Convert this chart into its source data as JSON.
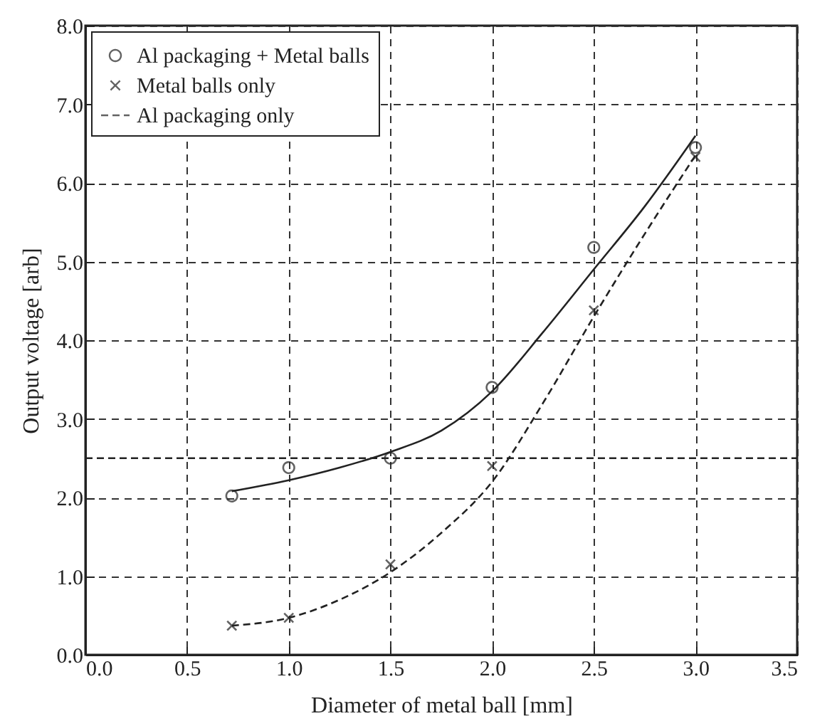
{
  "chart_data": {
    "type": "scatter",
    "xlabel": "Diameter of metal ball [mm]",
    "ylabel": "Output voltage [arb]",
    "xlim": [
      0,
      3.5
    ],
    "xticks": [
      {
        "value": 0,
        "label": "0.0"
      },
      {
        "value": 0.5,
        "label": "0.5"
      },
      {
        "value": 1,
        "label": "1.0"
      },
      {
        "value": 1.5,
        "label": "1.5"
      },
      {
        "value": 2,
        "label": "2.0"
      },
      {
        "value": 2.5,
        "label": "2.5"
      },
      {
        "value": 3,
        "label": "3.0"
      },
      {
        "value": 3.5,
        "label": "3.5"
      }
    ],
    "ylim": [
      0,
      8
    ],
    "yticks": [
      {
        "value": 0,
        "label": "0.0"
      },
      {
        "value": 1,
        "label": "1.0"
      },
      {
        "value": 2,
        "label": "2.0"
      },
      {
        "value": 3,
        "label": "3.0"
      },
      {
        "value": 4,
        "label": "4.0"
      },
      {
        "value": 5,
        "label": "5.0"
      },
      {
        "value": 6,
        "label": "6.0"
      },
      {
        "value": 7,
        "label": "7.0"
      },
      {
        "value": 8,
        "label": "8.0"
      }
    ],
    "grid": true,
    "legend": "top left",
    "series": [
      {
        "name": "Al packaging + Metal balls",
        "marker": "circle",
        "color": "#222222",
        "x": [
          0.72,
          1.0,
          1.5,
          2.0,
          2.5,
          3.0
        ],
        "values": [
          2.02,
          2.38,
          2.5,
          3.4,
          5.18,
          6.45
        ]
      },
      {
        "name": "Metal balls only",
        "marker": "cross",
        "color": "#222222",
        "x": [
          0.72,
          1.0,
          1.5,
          2.0,
          2.5,
          3.0
        ],
        "values": [
          0.37,
          0.47,
          1.15,
          2.4,
          4.38,
          6.33
        ]
      },
      {
        "name": "Al packaging only",
        "type": "line",
        "line_style": "dashed",
        "color": "#222222",
        "x": [
          0,
          3.5
        ],
        "values": [
          2.5,
          2.5
        ]
      },
      {
        "type": "line",
        "line_style": "solid",
        "color": "#222222",
        "x": [
          0.72,
          1.0,
          1.25,
          1.5,
          1.75,
          2.0,
          2.25,
          2.5,
          2.75,
          3.0
        ],
        "values": [
          2.08,
          2.22,
          2.38,
          2.58,
          2.85,
          3.35,
          4.1,
          4.9,
          5.7,
          6.6
        ]
      },
      {
        "type": "line",
        "line_style": "dashed",
        "color": "#222222",
        "x": [
          0.72,
          1.0,
          1.25,
          1.5,
          1.75,
          2.0,
          2.25,
          2.5,
          2.75,
          3.0
        ],
        "values": [
          0.37,
          0.47,
          0.7,
          1.05,
          1.55,
          2.2,
          3.2,
          4.3,
          5.35,
          6.35
        ]
      }
    ]
  }
}
